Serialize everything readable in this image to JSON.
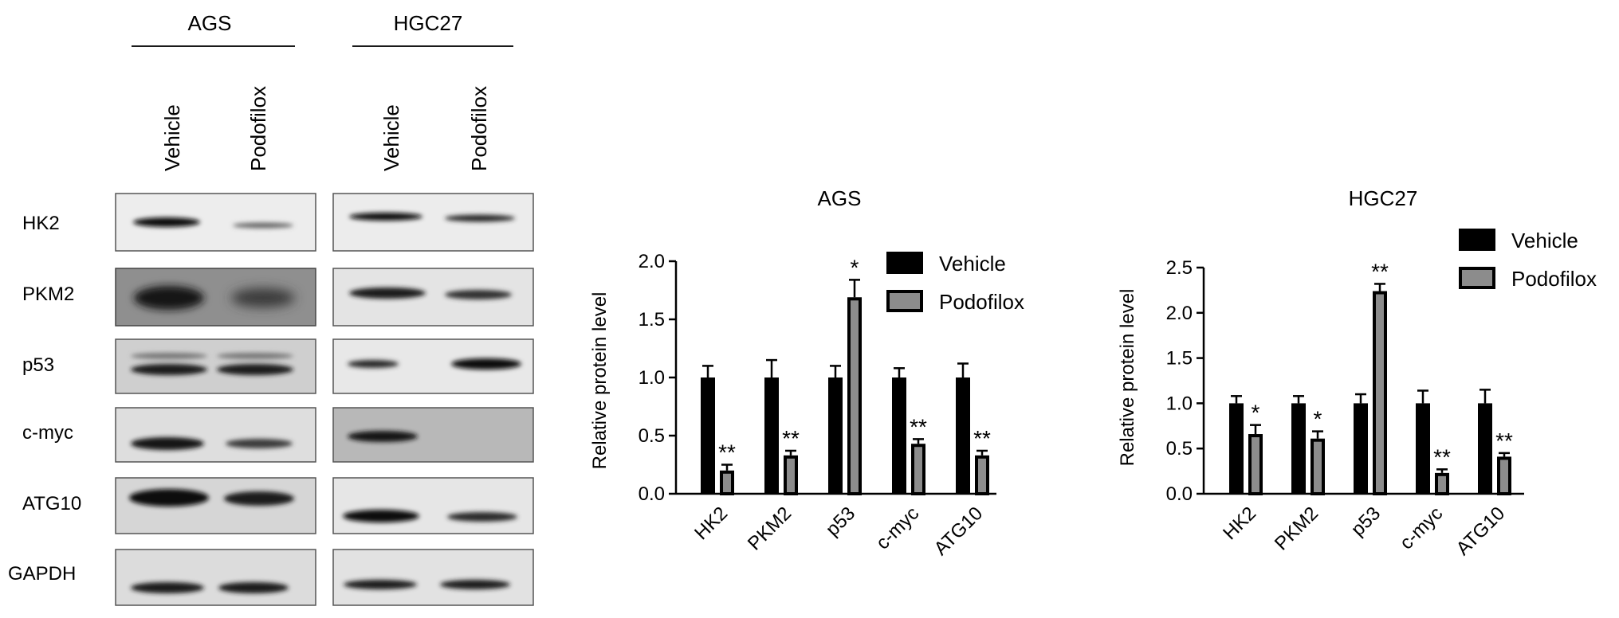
{
  "western_blot": {
    "cell_lines": [
      "AGS",
      "HGC27"
    ],
    "lanes": [
      "Vehicle",
      "Podofilox"
    ],
    "proteins": [
      "HK2",
      "PKM2",
      "p53",
      "c-myc",
      "ATG10",
      "GAPDH"
    ],
    "colors": {
      "membrane_light": "#e6e6e6",
      "membrane_dark": "#8c8c8c",
      "band": "#141414"
    }
  },
  "chart_data": [
    {
      "type": "bar",
      "title": "AGS",
      "ylabel": "Relative protein level",
      "xlabel": "",
      "categories": [
        "HK2",
        "PKM2",
        "p53",
        "c-myc",
        "ATG10"
      ],
      "ylim": [
        0,
        2.0
      ],
      "yticks": [
        "0.0",
        "0.5",
        "1.0",
        "1.5",
        "2.0"
      ],
      "legend_position": "top-right",
      "grid": false,
      "series": [
        {
          "name": "Vehicle",
          "color": "#000000",
          "values": [
            1.0,
            1.0,
            1.0,
            1.0,
            1.0
          ],
          "errors": [
            0.1,
            0.15,
            0.1,
            0.08,
            0.12
          ]
        },
        {
          "name": "Podofilox",
          "color": "#8c8c8c",
          "values": [
            0.2,
            0.33,
            1.69,
            0.43,
            0.33
          ],
          "errors": [
            0.05,
            0.04,
            0.15,
            0.04,
            0.04
          ]
        }
      ],
      "significance": [
        "**",
        "**",
        "*",
        "**",
        "**"
      ]
    },
    {
      "type": "bar",
      "title": "HGC27",
      "ylabel": "Relative protein level",
      "xlabel": "",
      "categories": [
        "HK2",
        "PKM2",
        "p53",
        "c-myc",
        "ATG10"
      ],
      "ylim": [
        0,
        2.5
      ],
      "yticks": [
        "0.0",
        "0.5",
        "1.0",
        "1.5",
        "2.0",
        "2.5"
      ],
      "legend_position": "top-right",
      "grid": false,
      "series": [
        {
          "name": "Vehicle",
          "color": "#000000",
          "values": [
            1.0,
            1.0,
            1.0,
            1.0,
            1.0
          ],
          "errors": [
            0.08,
            0.08,
            0.1,
            0.14,
            0.15
          ]
        },
        {
          "name": "Podofilox",
          "color": "#8c8c8c",
          "values": [
            0.66,
            0.61,
            2.24,
            0.23,
            0.41
          ],
          "errors": [
            0.1,
            0.08,
            0.08,
            0.04,
            0.04
          ]
        }
      ],
      "significance": [
        "*",
        "*",
        "**",
        "**",
        "**"
      ]
    }
  ]
}
